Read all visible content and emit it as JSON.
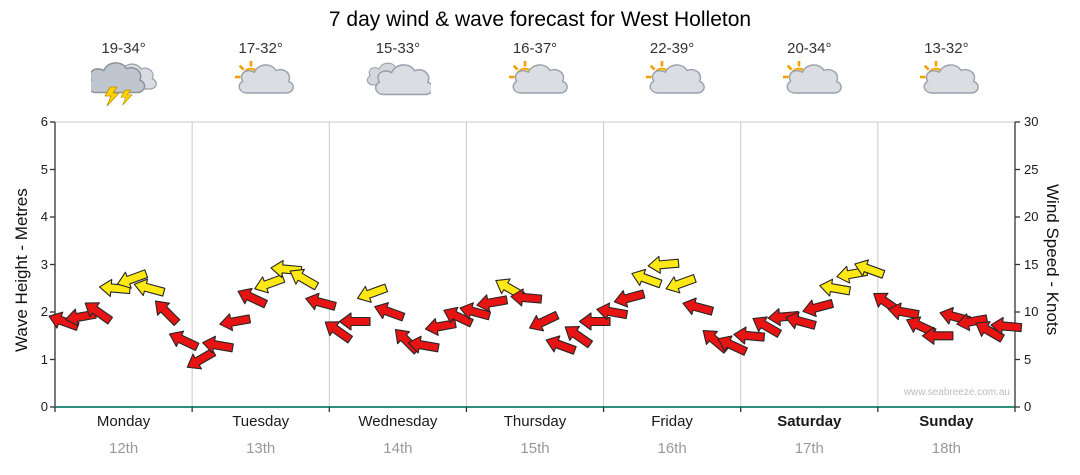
{
  "watermark": "www.seabreeze.com.au",
  "colors": {
    "arrow_red": "#e81414",
    "arrow_yellow": "#ffe813",
    "arrow_outline": "#262626",
    "grid_line": "#c9c9c9",
    "axis_line": "#333333",
    "bottom_axis_line": "#2f8f7f"
  },
  "days": [
    {
      "name": "Monday",
      "date": "12th",
      "temp": "19-34°",
      "icon": "storm",
      "emphasis": false
    },
    {
      "name": "Tuesday",
      "date": "13th",
      "temp": "17-32°",
      "icon": "partly-cloudy",
      "emphasis": false
    },
    {
      "name": "Wednesday",
      "date": "14th",
      "temp": "15-33°",
      "icon": "cloudy",
      "emphasis": false
    },
    {
      "name": "Thursday",
      "date": "15th",
      "temp": "16-37°",
      "icon": "partly-cloudy",
      "emphasis": false
    },
    {
      "name": "Friday",
      "date": "16th",
      "temp": "22-39°",
      "icon": "partly-cloudy",
      "emphasis": false
    },
    {
      "name": "Saturday",
      "date": "17th",
      "temp": "20-34°",
      "icon": "partly-cloudy",
      "emphasis": true
    },
    {
      "name": "Sunday",
      "date": "18th",
      "temp": "13-32°",
      "icon": "partly-cloudy",
      "emphasis": true
    }
  ],
  "chart_data": {
    "type": "wind-arrows",
    "title": "7 day wind & wave forecast for West Holleton",
    "categories": [
      "Monday",
      "Tuesday",
      "Wednesday",
      "Thursday",
      "Friday",
      "Saturday",
      "Sunday"
    ],
    "left_axis": {
      "label": "Wave Height - Metres",
      "min": 0,
      "max": 6,
      "ticks": [
        0,
        1,
        2,
        3,
        4,
        5,
        6
      ]
    },
    "right_axis": {
      "label": "Wind Speed - Knots",
      "min": 0,
      "max": 30,
      "ticks": [
        0,
        5,
        10,
        15,
        20,
        25,
        30
      ]
    },
    "interval_hours": 3,
    "points_per_day": 8,
    "speeds_kn": [
      9,
      9.5,
      10,
      12.5,
      13.5,
      12.5,
      10,
      7,
      5,
      6.5,
      9,
      11.5,
      13,
      14.5,
      13.5,
      11,
      8,
      9,
      12,
      10,
      7,
      6.5,
      8.5,
      9.5,
      10,
      11,
      12.5,
      11.5,
      9,
      6.5,
      7.5,
      9,
      10,
      11.5,
      13.5,
      15,
      13,
      10.5,
      7,
      6.5,
      7.5,
      8.5,
      9.5,
      9,
      10.5,
      12.5,
      14,
      14.5,
      11,
      10,
      8.5,
      7.5,
      9.5,
      9,
      8,
      8.5
    ],
    "dirs_deg": [
      200,
      170,
      215,
      185,
      160,
      195,
      225,
      205,
      150,
      190,
      170,
      205,
      160,
      185,
      210,
      195,
      215,
      180,
      160,
      200,
      225,
      190,
      170,
      205,
      195,
      170,
      210,
      185,
      155,
      200,
      215,
      180,
      190,
      165,
      200,
      175,
      160,
      195,
      220,
      205,
      185,
      210,
      175,
      195,
      165,
      190,
      170,
      200,
      215,
      190,
      205,
      180,
      195,
      170,
      210,
      185
    ],
    "colors": "rrryyyrrrrrryyyrrryrrrrrrryrrrrrrryyyrrrrrrrryyyrrrrrrrr"
  }
}
